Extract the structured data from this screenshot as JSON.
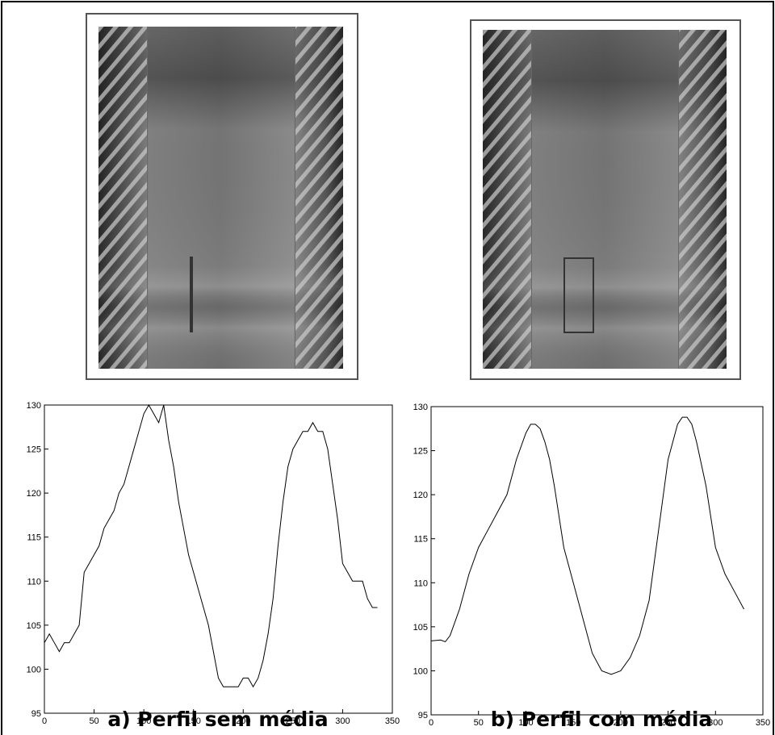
{
  "chart_data": [
    {
      "type": "line",
      "caption": "a) Perfil sem média",
      "color": "#000000",
      "x": [
        0,
        5,
        10,
        15,
        20,
        25,
        30,
        35,
        40,
        45,
        50,
        55,
        60,
        65,
        70,
        75,
        80,
        85,
        90,
        95,
        100,
        105,
        110,
        115,
        120,
        125,
        130,
        135,
        140,
        145,
        150,
        155,
        160,
        165,
        170,
        175,
        180,
        185,
        190,
        195,
        200,
        205,
        210,
        215,
        220,
        225,
        230,
        235,
        240,
        245,
        250,
        255,
        260,
        265,
        270,
        275,
        280,
        285,
        290,
        295,
        300,
        305,
        310,
        315,
        320,
        325,
        330,
        335
      ],
      "values": [
        103,
        104,
        103,
        102,
        103,
        103,
        104,
        105,
        111,
        112,
        113,
        114,
        116,
        117,
        118,
        120,
        121,
        123,
        125,
        127,
        129,
        130,
        129,
        128,
        130,
        126,
        123,
        119,
        116,
        113,
        111,
        109,
        107,
        105,
        102,
        99,
        98,
        98,
        98,
        98,
        99,
        99,
        98,
        99,
        101,
        104,
        108,
        114,
        119,
        123,
        125,
        126,
        127,
        127,
        128,
        127,
        127,
        125,
        121,
        117,
        112,
        111,
        110,
        110,
        110,
        108,
        107,
        107
      ],
      "xlim": [
        0,
        350
      ],
      "ylim": [
        95,
        130
      ],
      "xticks": [
        0,
        50,
        100,
        150,
        200,
        250,
        300,
        350
      ],
      "yticks": [
        95,
        100,
        105,
        110,
        115,
        120,
        125,
        130
      ]
    },
    {
      "type": "line",
      "caption": "b) Perfil com média",
      "color": "#000000",
      "x": [
        0,
        10,
        15,
        20,
        30,
        40,
        50,
        60,
        70,
        80,
        90,
        100,
        105,
        110,
        115,
        120,
        125,
        130,
        140,
        150,
        160,
        170,
        180,
        190,
        200,
        210,
        220,
        230,
        240,
        250,
        260,
        265,
        270,
        275,
        280,
        290,
        300,
        310,
        320,
        330
      ],
      "values": [
        103.4,
        103.5,
        103.3,
        104,
        107,
        111,
        114,
        116,
        118,
        120,
        124,
        127,
        128,
        128,
        127.5,
        126,
        124,
        121,
        114,
        110,
        106,
        102,
        100,
        99.6,
        100,
        101.5,
        104,
        108,
        116,
        124,
        128,
        128.8,
        128.8,
        128,
        126,
        121,
        114,
        111,
        109,
        107
      ],
      "xlim": [
        0,
        350
      ],
      "ylim": [
        95,
        130
      ],
      "xticks": [
        0,
        50,
        100,
        150,
        200,
        250,
        300,
        350
      ],
      "yticks": [
        95,
        100,
        105,
        110,
        115,
        120,
        125,
        130
      ]
    }
  ]
}
